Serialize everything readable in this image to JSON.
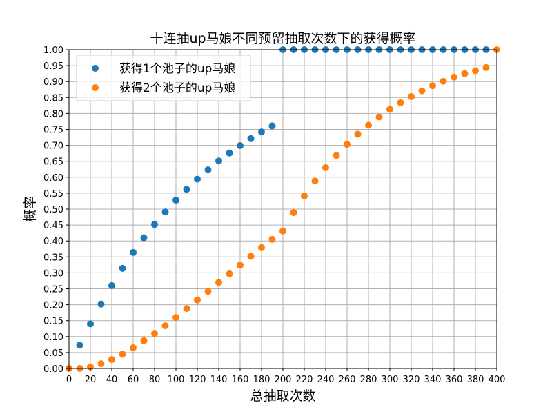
{
  "chart_data": {
    "type": "scatter",
    "title": "十连抽up马娘不同预留抽取次数下的获得概率",
    "xlabel": "总抽取次数",
    "ylabel": "概率",
    "xlim": [
      0,
      400
    ],
    "ylim": [
      0,
      1
    ],
    "grid": true,
    "legend_position": "top-left",
    "x_ticks": [
      "0",
      "20",
      "40",
      "60",
      "80",
      "100",
      "120",
      "140",
      "160",
      "180",
      "200",
      "220",
      "240",
      "260",
      "280",
      "300",
      "320",
      "340",
      "360",
      "380",
      "400"
    ],
    "y_ticks": [
      "0.00",
      "0.05",
      "0.10",
      "0.15",
      "0.20",
      "0.25",
      "0.30",
      "0.35",
      "0.40",
      "0.45",
      "0.50",
      "0.55",
      "0.60",
      "0.65",
      "0.70",
      "0.75",
      "0.80",
      "0.85",
      "0.90",
      "0.95",
      "1.00"
    ],
    "series": [
      {
        "name": "获得1个池子的up马娘",
        "color": "#1f77b4",
        "x": [
          10,
          20,
          30,
          40,
          50,
          60,
          70,
          80,
          90,
          100,
          110,
          120,
          130,
          140,
          150,
          160,
          170,
          180,
          190,
          200,
          210,
          220,
          230,
          240,
          250,
          260,
          270,
          280,
          290,
          300,
          310,
          320,
          330,
          340,
          350,
          360,
          370,
          380,
          390
        ],
        "y": [
          0.073,
          0.14,
          0.202,
          0.26,
          0.314,
          0.364,
          0.41,
          0.452,
          0.491,
          0.528,
          0.562,
          0.594,
          0.623,
          0.651,
          0.676,
          0.699,
          0.721,
          0.742,
          0.761,
          1.0,
          1.0,
          1.0,
          1.0,
          1.0,
          1.0,
          1.0,
          1.0,
          1.0,
          1.0,
          1.0,
          1.0,
          1.0,
          1.0,
          1.0,
          1.0,
          1.0,
          1.0,
          1.0,
          1.0
        ]
      },
      {
        "name": "获得2个池子的up马娘",
        "color": "#ff7f0e",
        "x": [
          0,
          10,
          20,
          30,
          40,
          50,
          60,
          70,
          80,
          90,
          100,
          110,
          120,
          130,
          140,
          150,
          160,
          170,
          180,
          190,
          200,
          210,
          220,
          230,
          240,
          250,
          260,
          270,
          280,
          290,
          300,
          310,
          320,
          330,
          340,
          350,
          360,
          370,
          380,
          390,
          400
        ],
        "y": [
          0.0,
          0.0,
          0.005,
          0.015,
          0.028,
          0.045,
          0.065,
          0.087,
          0.11,
          0.134,
          0.16,
          0.188,
          0.215,
          0.242,
          0.27,
          0.297,
          0.324,
          0.352,
          0.379,
          0.405,
          0.431,
          0.489,
          0.541,
          0.588,
          0.63,
          0.668,
          0.703,
          0.735,
          0.763,
          0.789,
          0.813,
          0.834,
          0.853,
          0.871,
          0.887,
          0.901,
          0.914,
          0.925,
          0.934,
          0.944,
          1.0
        ]
      }
    ]
  }
}
